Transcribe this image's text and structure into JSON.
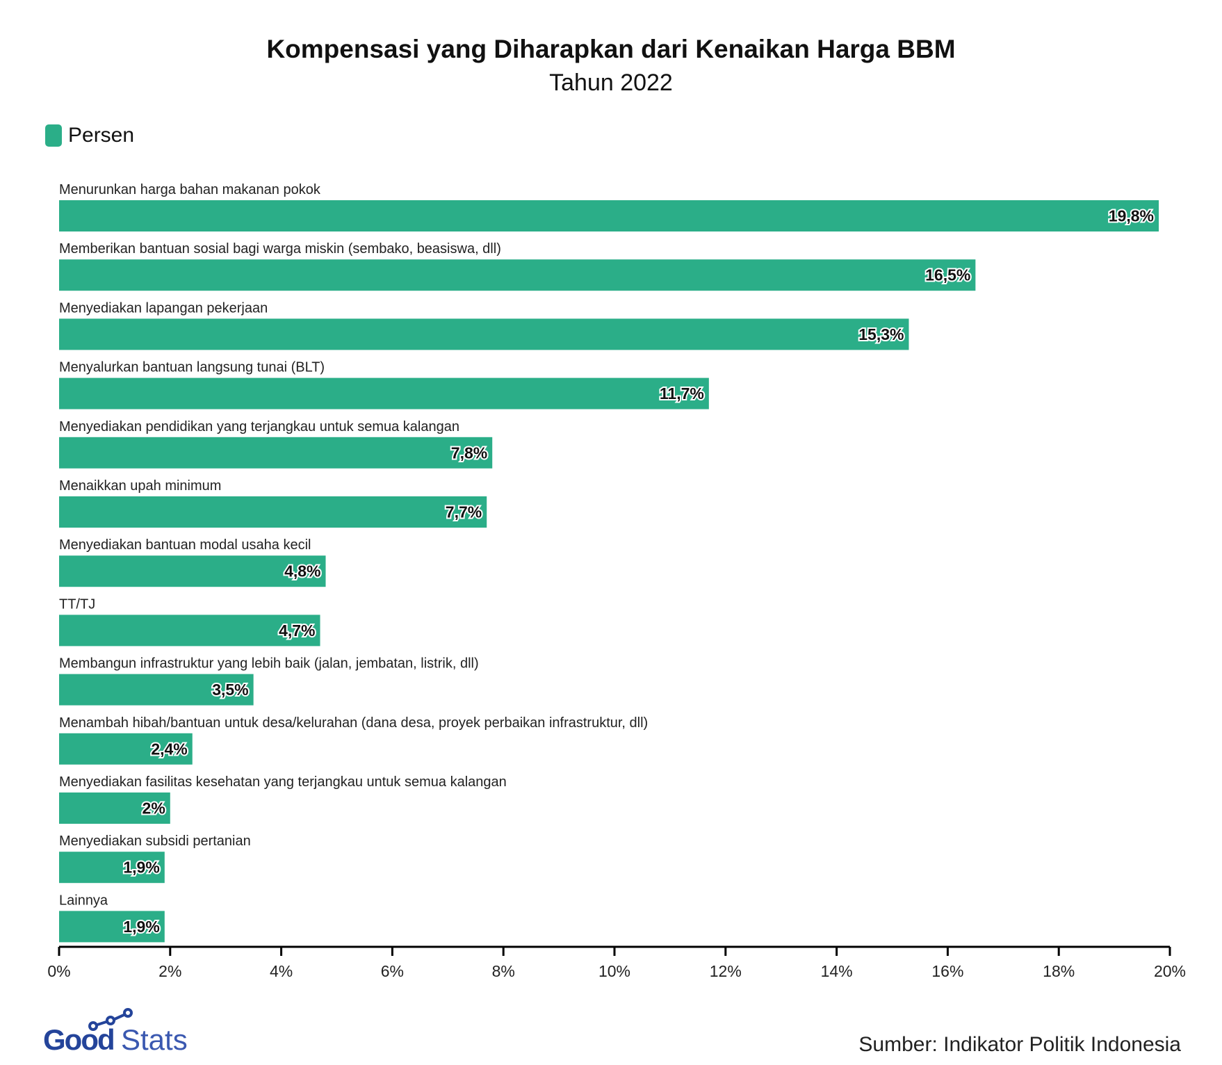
{
  "chart_data": {
    "type": "bar",
    "orientation": "horizontal",
    "title": "Kompensasi yang Diharapkan dari Kenaikan Harga BBM",
    "subtitle": "Tahun 2022",
    "legend": {
      "position": "top-left",
      "entries": [
        "Persen"
      ]
    },
    "categories": [
      "Menurunkan harga bahan makanan pokok",
      "Memberikan bantuan sosial bagi warga miskin (sembako, beasiswa, dll)",
      "Menyediakan lapangan pekerjaan",
      "Menyalurkan bantuan langsung tunai (BLT)",
      "Menyediakan pendidikan yang terjangkau untuk semua kalangan",
      "Menaikkan upah minimum",
      "Menyediakan bantuan modal usaha kecil",
      "TT/TJ",
      "Membangun infrastruktur yang lebih baik (jalan, jembatan, listrik, dll)",
      "Menambah hibah/bantuan untuk desa/kelurahan (dana desa, proyek perbaikan infrastruktur, dll)",
      "Menyediakan fasilitas kesehatan yang terjangkau untuk semua kalangan",
      "Menyediakan subsidi pertanian",
      "Lainnya"
    ],
    "series": [
      {
        "name": "Persen",
        "values": [
          19.8,
          16.5,
          15.3,
          11.7,
          7.8,
          7.7,
          4.8,
          4.7,
          3.5,
          2.4,
          2,
          1.9,
          1.9
        ]
      }
    ],
    "data_labels": [
      "19,8%",
      "16,5%",
      "15,3%",
      "11,7%",
      "7,8%",
      "7,7%",
      "4,8%",
      "4,7%",
      "3,5%",
      "2,4%",
      "2%",
      "1,9%",
      "1,9%"
    ],
    "xlim": [
      0,
      20
    ],
    "x_ticks": [
      "0%",
      "2%",
      "4%",
      "6%",
      "8%",
      "10%",
      "12%",
      "14%",
      "16%",
      "18%",
      "20%"
    ],
    "grid": false,
    "color": "#2bae88"
  },
  "footer": {
    "source": "Sumber: Indikator Politik Indonesia",
    "logo": "GoodStats"
  }
}
